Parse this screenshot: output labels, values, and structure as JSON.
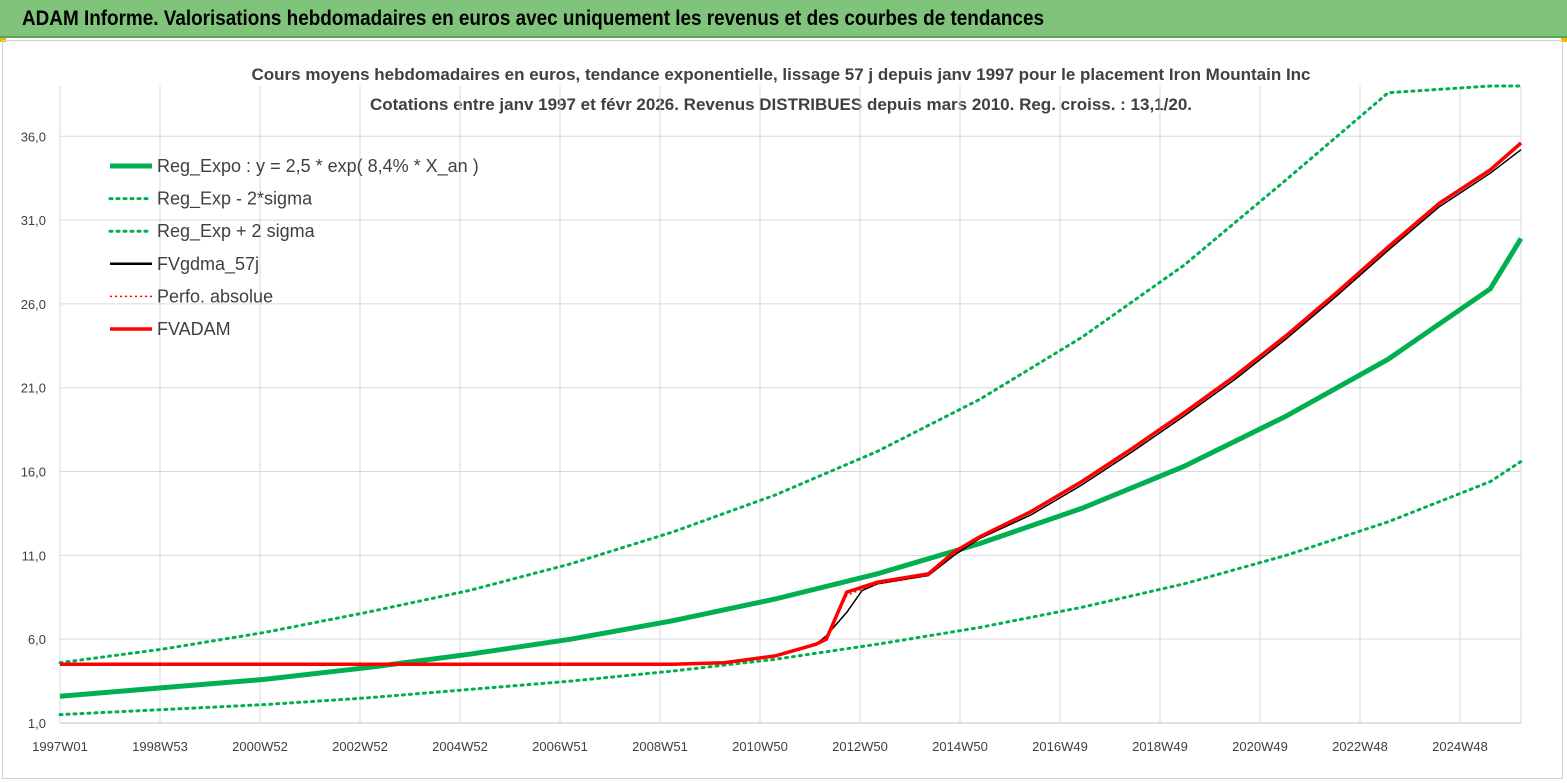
{
  "header": {
    "title": "ADAM Informe. Valorisations hebdomadaires en euros avec uniquement les revenus et des courbes de tendances"
  },
  "chart_data": {
    "type": "line",
    "title": "Cours moyens hebdomadaires en euros, tendance exponentielle, lissage 57 j depuis janv 1997 pour le placement Iron Mountain Inc",
    "subtitle": "Cotations entre janv 1997 et févr 2026. Revenus DISTRIBUES depuis mars 2010. Reg. croiss. : 13,1/20.",
    "xlabel": "",
    "ylabel": "",
    "x_ticks": [
      "1997W01",
      "1998W53",
      "2000W52",
      "2002W52",
      "2004W52",
      "2006W51",
      "2008W51",
      "2010W50",
      "2012W50",
      "2014W50",
      "2016W49",
      "2018W49",
      "2020W49",
      "2022W48",
      "2024W48"
    ],
    "x_range": [
      1997.0,
      2025.6
    ],
    "y_ticks": [
      "1,0",
      "6,0",
      "11,0",
      "16,0",
      "21,0",
      "26,0",
      "31,0",
      "36,0"
    ],
    "ylim": [
      1,
      39
    ],
    "grid": true,
    "legend_position": "top-left",
    "series": [
      {
        "name": "Reg_Expo : y = 2,5 * exp( 8,4% *  X_an )",
        "color": "#00b050",
        "style": "solid-thick",
        "x": [
          1997.0,
          1999.0,
          2001.0,
          2003.0,
          2005.0,
          2007.0,
          2009.0,
          2011.0,
          2013.0,
          2015.0,
          2017.0,
          2019.0,
          2021.0,
          2023.0,
          2025.0,
          2025.6
        ],
        "y": [
          2.6,
          3.1,
          3.6,
          4.3,
          5.1,
          6.0,
          7.1,
          8.4,
          9.9,
          11.7,
          13.8,
          16.3,
          19.3,
          22.7,
          26.9,
          29.9
        ]
      },
      {
        "name": "Reg_Exp - 2*sigma",
        "color": "#00b050",
        "style": "dotted",
        "x": [
          1997.0,
          1999.0,
          2001.0,
          2003.0,
          2005.0,
          2007.0,
          2009.0,
          2011.0,
          2013.0,
          2015.0,
          2017.0,
          2019.0,
          2021.0,
          2023.0,
          2025.0,
          2025.6
        ],
        "y": [
          1.5,
          1.8,
          2.1,
          2.5,
          3.0,
          3.5,
          4.1,
          4.8,
          5.7,
          6.7,
          7.9,
          9.3,
          11.0,
          13.0,
          15.4,
          16.6
        ]
      },
      {
        "name": "Reg_Exp + 2 sigma",
        "color": "#00b050",
        "style": "dotted",
        "x": [
          1997.0,
          1999.0,
          2001.0,
          2003.0,
          2005.0,
          2007.0,
          2009.0,
          2011.0,
          2013.0,
          2015.0,
          2017.0,
          2019.0,
          2021.0,
          2023.0,
          2025.0,
          2025.6
        ],
        "y": [
          4.6,
          5.4,
          6.4,
          7.6,
          8.9,
          10.5,
          12.4,
          14.6,
          17.2,
          20.3,
          24.0,
          28.3,
          33.4,
          38.6,
          39.0,
          39.0
        ]
      },
      {
        "name": "FVgdma_57j",
        "color": "#000000",
        "style": "solid-thin",
        "x": [
          1997.0,
          2009.0,
          2010.0,
          2011.0,
          2011.8,
          2012.0,
          2012.4,
          2012.7,
          2013.0,
          2014.0,
          2014.5,
          2015.0,
          2016.0,
          2017.0,
          2018.0,
          2019.0,
          2020.0,
          2021.0,
          2022.0,
          2023.0,
          2024.0,
          2025.0,
          2025.6
        ],
        "y": [
          4.5,
          4.5,
          4.6,
          5.0,
          5.7,
          6.2,
          7.6,
          8.9,
          9.3,
          9.8,
          11.0,
          12.0,
          13.4,
          15.2,
          17.2,
          19.3,
          21.5,
          23.9,
          26.5,
          29.2,
          31.8,
          33.8,
          35.2
        ]
      },
      {
        "name": "Perfo. absolue",
        "color": "#ff0000",
        "style": "dotted-thin",
        "x": [
          1997.0,
          2009.0,
          2010.0,
          2011.0,
          2011.8,
          2012.0,
          2012.4,
          2012.7,
          2013.0,
          2014.0,
          2014.5,
          2015.0,
          2016.0,
          2017.0,
          2018.0,
          2019.0,
          2020.0,
          2021.0,
          2022.0,
          2023.0,
          2024.0,
          2025.0,
          2025.6
        ],
        "y": [
          4.5,
          4.5,
          4.6,
          5.0,
          5.7,
          6.2,
          8.6,
          9.0,
          9.3,
          9.8,
          11.2,
          12.1,
          13.6,
          15.4,
          17.4,
          19.5,
          21.7,
          24.1,
          26.7,
          29.4,
          32.0,
          34.0,
          35.6
        ]
      },
      {
        "name": "FVADAM",
        "color": "#ff0000",
        "style": "solid-thick",
        "x": [
          1997.0,
          2009.0,
          2010.0,
          2011.0,
          2011.8,
          2012.0,
          2012.4,
          2012.7,
          2013.0,
          2014.0,
          2014.5,
          2015.0,
          2016.0,
          2017.0,
          2018.0,
          2019.0,
          2020.0,
          2021.0,
          2022.0,
          2023.0,
          2024.0,
          2025.0,
          2025.6
        ],
        "y": [
          4.5,
          4.5,
          4.6,
          5.0,
          5.7,
          6.0,
          8.8,
          9.1,
          9.4,
          9.9,
          11.2,
          12.1,
          13.6,
          15.4,
          17.4,
          19.5,
          21.7,
          24.1,
          26.7,
          29.4,
          32.0,
          34.0,
          35.6
        ]
      }
    ]
  }
}
